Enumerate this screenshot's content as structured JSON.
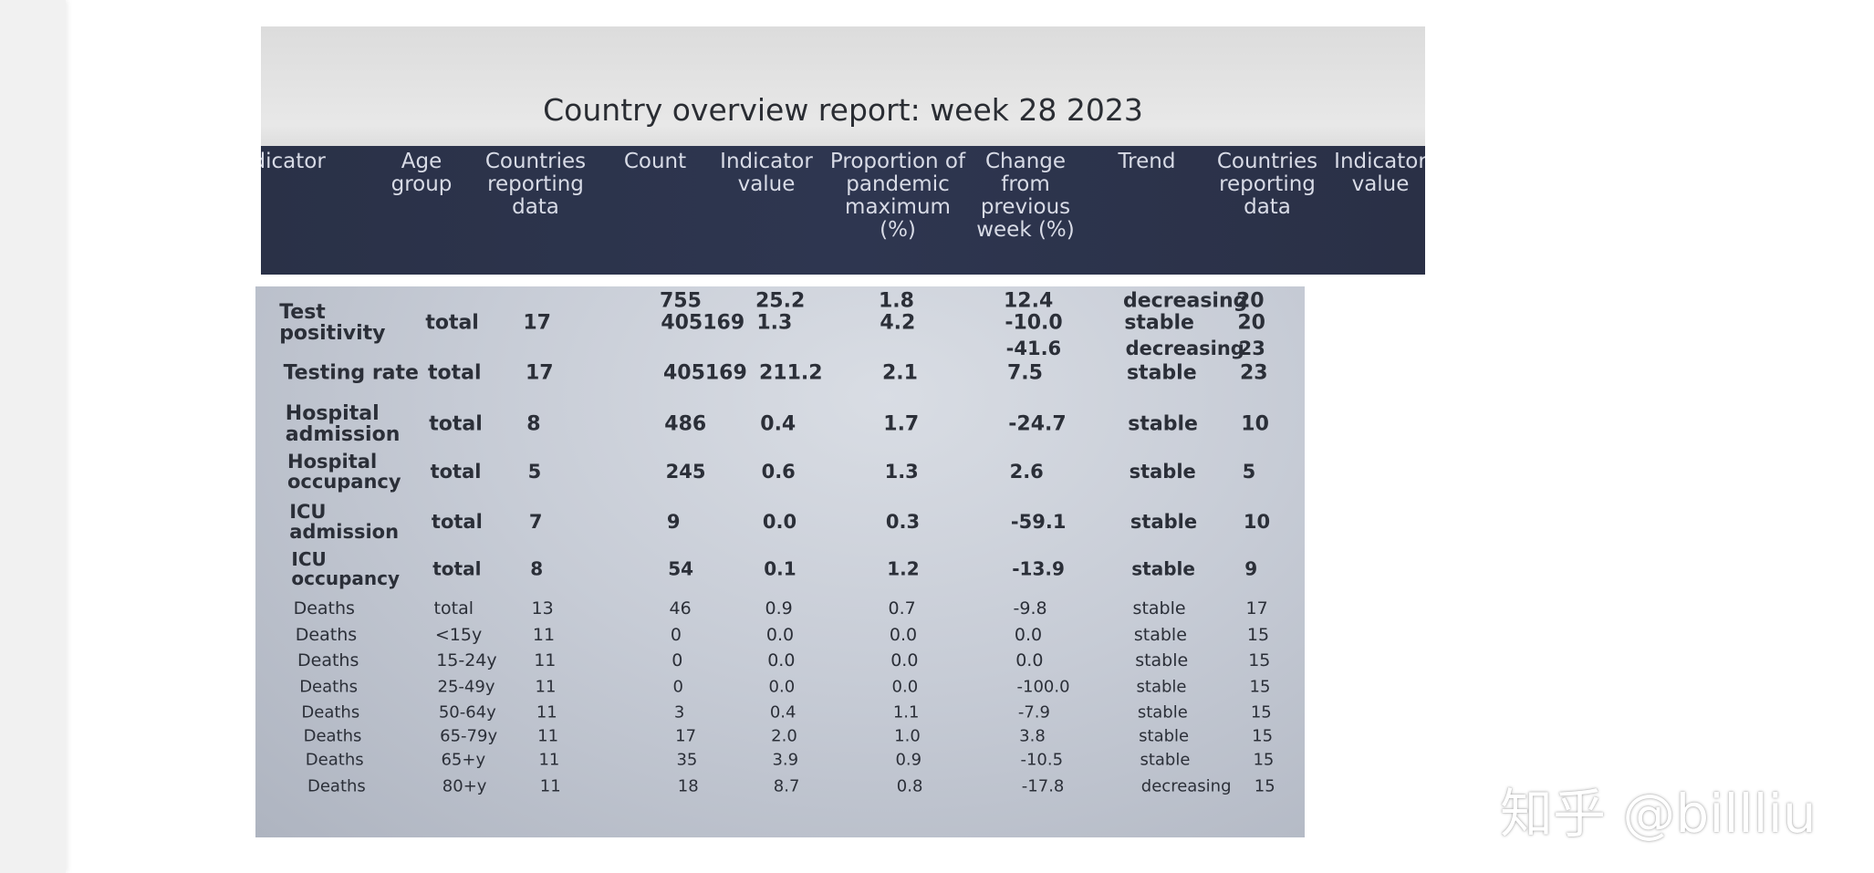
{
  "report": {
    "title": "Country overview report: week 28 2023",
    "columns": [
      "Indicator",
      "Age group",
      "Countries reporting data",
      "Count",
      "Indicator value",
      "Proportion of pandemic maximum (%)",
      "Change from previous week (%)",
      "Trend",
      "Countries reporting data",
      "Indicator value"
    ],
    "rows": [
      {
        "count": "755",
        "value": "25.2",
        "proportion": "1.8",
        "change": "12.4",
        "trend": "decreasing",
        "countries2": "20"
      },
      {
        "indicator": "Test positivity",
        "age_group": "total",
        "countries": "17",
        "count": "405169",
        "value": "1.3",
        "proportion": "4.2",
        "change": "-10.0",
        "trend": "stable",
        "countries2": "20"
      },
      {
        "change": "-41.6",
        "trend": "decreasing",
        "countries2": "23"
      },
      {
        "indicator": "Testing rate",
        "age_group": "total",
        "countries": "17",
        "count": "405169",
        "value": "211.2",
        "proportion": "2.1",
        "change": "7.5",
        "trend": "stable",
        "countries2": "23"
      },
      {
        "indicator": "Hospital admission",
        "age_group": "total",
        "countries": "8",
        "count": "486",
        "value": "0.4",
        "proportion": "1.7",
        "change": "-24.7",
        "trend": "stable",
        "countries2": "10"
      },
      {
        "indicator": "Hospital occupancy",
        "age_group": "total",
        "countries": "5",
        "count": "245",
        "value": "0.6",
        "proportion": "1.3",
        "change": "2.6",
        "trend": "stable",
        "countries2": "5"
      },
      {
        "indicator": "ICU admission",
        "age_group": "total",
        "countries": "7",
        "count": "9",
        "value": "0.0",
        "proportion": "0.3",
        "change": "-59.1",
        "trend": "stable",
        "countries2": "10"
      },
      {
        "indicator": "ICU occupancy",
        "age_group": "total",
        "countries": "8",
        "count": "54",
        "value": "0.1",
        "proportion": "1.2",
        "change": "-13.9",
        "trend": "stable",
        "countries2": "9"
      },
      {
        "indicator": "Deaths",
        "age_group": "total",
        "countries": "13",
        "count": "46",
        "value": "0.9",
        "proportion": "0.7",
        "change": "-9.8",
        "trend": "stable",
        "countries2": "17"
      },
      {
        "indicator": "Deaths",
        "age_group": "<15y",
        "countries": "11",
        "count": "0",
        "value": "0.0",
        "proportion": "0.0",
        "change": "0.0",
        "trend": "stable",
        "countries2": "15"
      },
      {
        "indicator": "Deaths",
        "age_group": "15-24y",
        "countries": "11",
        "count": "0",
        "value": "0.0",
        "proportion": "0.0",
        "change": "0.0",
        "trend": "stable",
        "countries2": "15"
      },
      {
        "indicator": "Deaths",
        "age_group": "25-49y",
        "countries": "11",
        "count": "0",
        "value": "0.0",
        "proportion": "0.0",
        "change": "-100.0",
        "trend": "stable",
        "countries2": "15"
      },
      {
        "indicator": "Deaths",
        "age_group": "50-64y",
        "countries": "11",
        "count": "3",
        "value": "0.4",
        "proportion": "1.1",
        "change": "-7.9",
        "trend": "stable",
        "countries2": "15"
      },
      {
        "indicator": "Deaths",
        "age_group": "65-79y",
        "countries": "11",
        "count": "17",
        "value": "2.0",
        "proportion": "1.0",
        "change": "3.8",
        "trend": "stable",
        "countries2": "15"
      },
      {
        "indicator": "Deaths",
        "age_group": "65+y",
        "countries": "11",
        "count": "35",
        "value": "3.9",
        "proportion": "0.9",
        "change": "-10.5",
        "trend": "stable",
        "countries2": "15"
      },
      {
        "indicator": "Deaths",
        "age_group": "80+y",
        "countries": "11",
        "count": "18",
        "value": "8.7",
        "proportion": "0.8",
        "change": "-17.8",
        "trend": "decreasing",
        "countries2": "15"
      }
    ]
  },
  "watermark": "知乎 @billliu"
}
